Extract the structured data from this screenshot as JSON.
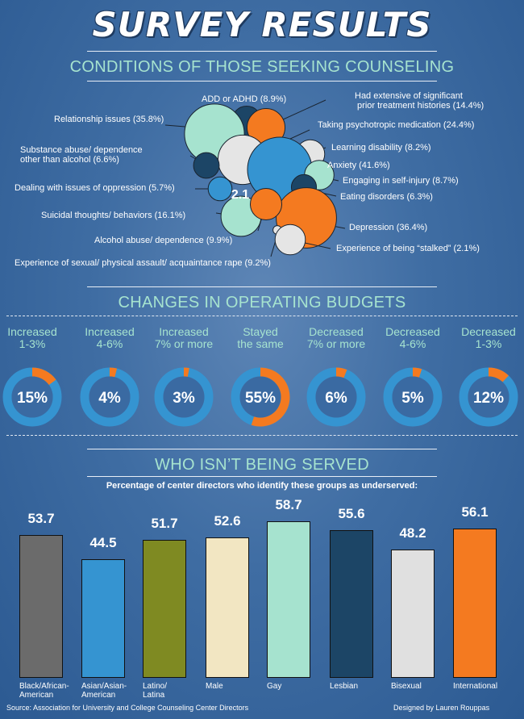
{
  "title": "SURVEY RESULTS",
  "sections": {
    "conditions": "CONDITIONS OF THOSE SEEKING COUNSELING",
    "budgets": "CHANGES IN OPERATING BUDGETS",
    "served": "WHO ISN’T BEING SERVED"
  },
  "colors": {
    "teal": "#a6e3cf",
    "blue": "#3594d1",
    "orange": "#f47a20",
    "light": "#e5e5e5",
    "navy": "#1c4566",
    "ring_track": "#3594d1"
  },
  "chart_data": [
    {
      "type": "scatter",
      "title": "CONDITIONS OF THOSE SEEKING COUNSELING",
      "center_annotation": "2.1",
      "points": [
        {
          "label": "ADD or ADHD (8.9%)",
          "value": 8.9,
          "color": "navy"
        },
        {
          "label": "Had extensive of significant prior treatment histories (14.4%)",
          "value": 14.4,
          "color": "orange"
        },
        {
          "label": "Relationship issues (35.8%)",
          "value": 35.8,
          "color": "teal"
        },
        {
          "label": "Taking psychotropic medication (24.4%)",
          "value": 24.4,
          "color": "light"
        },
        {
          "label": "Substance abuse/ dependence other than alcohol (6.6%)",
          "value": 6.6,
          "color": "navy"
        },
        {
          "label": "Learning disability (8.2%)",
          "value": 8.2,
          "color": "light"
        },
        {
          "label": "Anxiety (41.6%)",
          "value": 41.6,
          "color": "blue"
        },
        {
          "label": "Engaging in self-injury (8.7%)",
          "value": 8.7,
          "color": "teal"
        },
        {
          "label": "Dealing with issues of oppression (5.7%)",
          "value": 5.7,
          "color": "blue"
        },
        {
          "label": "Eating disorders (6.3%)",
          "value": 6.3,
          "color": "navy"
        },
        {
          "label": "Suicidal thoughts/ behaviors (16.1%)",
          "value": 16.1,
          "color": "teal"
        },
        {
          "label": "Depression (36.4%)",
          "value": 36.4,
          "color": "orange"
        },
        {
          "label": "Alcohol abuse/ dependence (9.9%)",
          "value": 9.9,
          "color": "orange"
        },
        {
          "label": "Experience of being “stalked” (2.1%)",
          "value": 2.1,
          "color": "light"
        },
        {
          "label": "Experience of sexual/ physical assault/ acquaintance rape (9.2%)",
          "value": 9.2,
          "color": "light"
        }
      ]
    },
    {
      "type": "pie",
      "title": "CHANGES IN OPERATING BUDGETS",
      "items": [
        {
          "label": "Increased 1-3%",
          "value": 15,
          "display": "15%"
        },
        {
          "label": "Increased 4-6%",
          "value": 4,
          "display": "4%"
        },
        {
          "label": "Increased 7% or more",
          "value": 3,
          "display": "3%"
        },
        {
          "label": "Stayed the same",
          "value": 55,
          "display": "55%"
        },
        {
          "label": "Decreased 7% or more",
          "value": 6,
          "display": "6%"
        },
        {
          "label": "Decreased 4-6%",
          "value": 5,
          "display": "5%"
        },
        {
          "label": "Decreased 1-3%",
          "value": 12,
          "display": "12%"
        }
      ]
    },
    {
      "type": "bar",
      "title": "WHO ISN’T BEING SERVED",
      "subtitle": "Percentage of center directors who identify these groups as underserved:",
      "categories": [
        "Black/African-American",
        "Asian/Asian-American",
        "Latino/Latina",
        "Male",
        "Gay",
        "Lesbian",
        "Bisexual",
        "International"
      ],
      "values": [
        53.7,
        44.5,
        51.7,
        52.6,
        58.7,
        55.6,
        48.2,
        56.1
      ],
      "colors": [
        "#6b6b6b",
        "#3594d1",
        "#7f8a22",
        "#f2e6c2",
        "#a6e3cf",
        "#1c4566",
        "#e0e0e0",
        "#f47a20"
      ]
    }
  ],
  "footer": {
    "source": "Source: Association for University and College Counseling Center Directors",
    "credit": "Designed by Lauren Rouppas"
  }
}
